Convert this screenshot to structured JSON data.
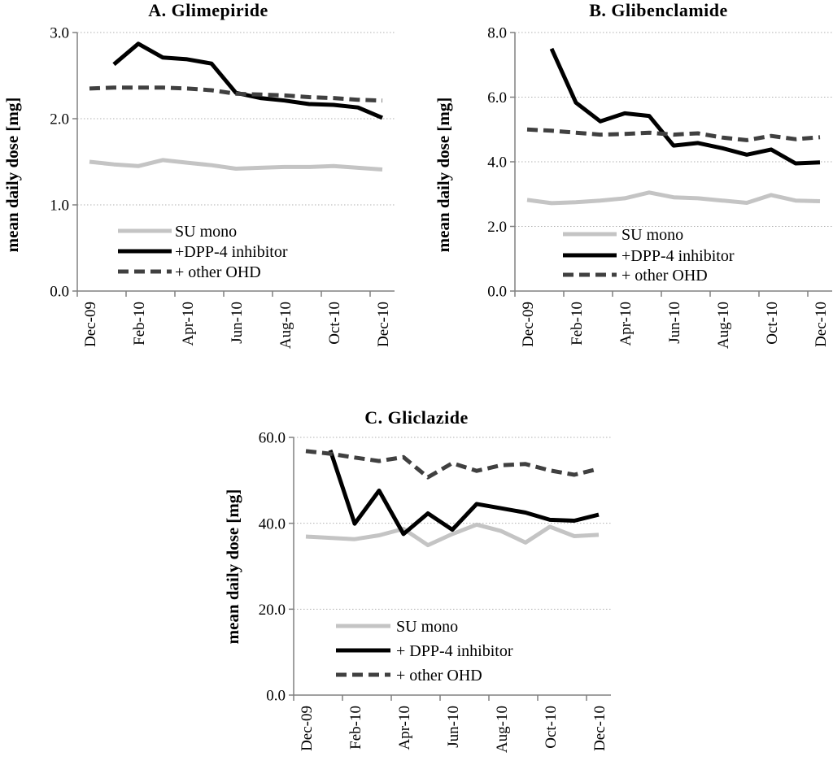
{
  "figure": {
    "panel_a_title": "A. Glimepiride",
    "panel_b_title": "B. Glibenclamide",
    "panel_c_title": "C. Gliclazide",
    "y_axis_label": "mean daily dose [mg]"
  },
  "colors": {
    "su_mono": "#c4c4c4",
    "dpp4": "#000000",
    "other_ohd": "#404040",
    "axis": "#808080",
    "gridline": "#b0b0b0"
  },
  "chart_data": [
    {
      "panel": "A",
      "type": "line",
      "title": "A. Glimepiride",
      "ylabel": "mean daily dose [mg]",
      "ylim": [
        0,
        3
      ],
      "grid": true,
      "legend_position": "inside-bottom-left",
      "yticks": [
        {
          "v": 3,
          "label": "3.0"
        },
        {
          "v": 2,
          "label": "2.0"
        },
        {
          "v": 1,
          "label": "1.0"
        },
        {
          "v": 0,
          "label": "0.0"
        }
      ],
      "categories": [
        "Dec-09",
        "Jan-10",
        "Feb-10",
        "Mar-10",
        "Apr-10",
        "May-10",
        "Jun-10",
        "Jul-10",
        "Aug-10",
        "Sep-10",
        "Oct-10",
        "Nov-10",
        "Dec-10"
      ],
      "x_tick_labels": [
        "Dec-09",
        "Feb-10",
        "Apr-10",
        "Jun-10",
        "Aug-10",
        "Oct-10",
        "Dec-10"
      ],
      "series": [
        {
          "name": "SU mono",
          "color": "#c4c4c4",
          "style": "solid",
          "values": [
            1.5,
            1.47,
            1.45,
            1.52,
            1.49,
            1.46,
            1.42,
            1.43,
            1.44,
            1.44,
            1.45,
            1.43,
            1.41
          ]
        },
        {
          "name": "+DPP-4 inhibitor",
          "color": "#000000",
          "style": "solid",
          "values": [
            null,
            2.63,
            2.87,
            2.71,
            2.69,
            2.64,
            2.3,
            2.24,
            2.21,
            2.17,
            2.16,
            2.13,
            2.01
          ]
        },
        {
          "name": "+ other OHD",
          "color": "#404040",
          "style": "dashed",
          "values": [
            2.35,
            2.36,
            2.36,
            2.36,
            2.35,
            2.33,
            2.29,
            2.28,
            2.27,
            2.25,
            2.24,
            2.22,
            2.21
          ]
        }
      ]
    },
    {
      "panel": "B",
      "type": "line",
      "title": "B. Glibenclamide",
      "ylabel": "mean daily dose [mg]",
      "ylim": [
        0,
        8
      ],
      "grid": true,
      "legend_position": "inside-bottom-left",
      "yticks": [
        {
          "v": 8,
          "label": "8.0"
        },
        {
          "v": 6,
          "label": "6.0"
        },
        {
          "v": 4,
          "label": "4.0"
        },
        {
          "v": 2,
          "label": "2.0"
        },
        {
          "v": 0,
          "label": "0.0"
        }
      ],
      "categories": [
        "Dec-09",
        "Jan-10",
        "Feb-10",
        "Mar-10",
        "Apr-10",
        "May-10",
        "Jun-10",
        "Jul-10",
        "Aug-10",
        "Sep-10",
        "Oct-10",
        "Nov-10",
        "Dec-10"
      ],
      "x_tick_labels": [
        "Dec-09",
        "Feb-10",
        "Apr-10",
        "Jun-10",
        "Aug-10",
        "Oct-10",
        "Dec-10"
      ],
      "series": [
        {
          "name": "SU mono",
          "color": "#c4c4c4",
          "style": "solid",
          "values": [
            2.82,
            2.72,
            2.75,
            2.8,
            2.87,
            3.05,
            2.9,
            2.87,
            2.8,
            2.73,
            2.97,
            2.8,
            2.78
          ]
        },
        {
          "name": "+DPP-4 inhibitor",
          "color": "#000000",
          "style": "solid",
          "values": [
            null,
            7.5,
            5.83,
            5.25,
            5.5,
            5.42,
            4.5,
            4.58,
            4.42,
            4.22,
            4.38,
            3.95,
            3.98
          ]
        },
        {
          "name": "+ other OHD",
          "color": "#404040",
          "style": "dashed",
          "values": [
            5.0,
            4.96,
            4.9,
            4.84,
            4.86,
            4.9,
            4.84,
            4.88,
            4.75,
            4.67,
            4.8,
            4.7,
            4.76
          ]
        }
      ]
    },
    {
      "panel": "C",
      "type": "line",
      "title": "C. Gliclazide",
      "ylabel": "mean daily dose [mg]",
      "ylim": [
        0,
        60
      ],
      "grid": true,
      "legend_position": "inside-bottom-left",
      "yticks": [
        {
          "v": 60,
          "label": "60.0"
        },
        {
          "v": 40,
          "label": "40.0"
        },
        {
          "v": 20,
          "label": "20.0"
        },
        {
          "v": 0,
          "label": "0.0"
        }
      ],
      "categories": [
        "Dec-09",
        "Jan-10",
        "Feb-10",
        "Mar-10",
        "Apr-10",
        "May-10",
        "Jun-10",
        "Jul-10",
        "Aug-10",
        "Sep-10",
        "Oct-10",
        "Nov-10",
        "Dec-10"
      ],
      "x_tick_labels": [
        "Dec-09",
        "Feb-10",
        "Apr-10",
        "Jun-10",
        "Aug-10",
        "Oct-10",
        "Dec-10"
      ],
      "series": [
        {
          "name": "SU mono",
          "color": "#c4c4c4",
          "style": "solid",
          "values": [
            36.9,
            36.6,
            36.3,
            37.2,
            38.7,
            34.9,
            37.5,
            39.7,
            38.2,
            35.5,
            39.2,
            37.0,
            37.3
          ]
        },
        {
          "name": "+ DPP-4 inhibitor",
          "color": "#000000",
          "style": "solid",
          "values": [
            null,
            57.0,
            39.9,
            47.6,
            37.5,
            42.3,
            38.5,
            44.5,
            43.5,
            42.5,
            40.8,
            40.6,
            42.0
          ]
        },
        {
          "name": "+ other OHD",
          "color": "#404040",
          "style": "dashed",
          "values": [
            56.8,
            56.2,
            55.3,
            54.5,
            55.4,
            50.7,
            54.0,
            52.2,
            53.5,
            53.8,
            52.3,
            51.3,
            52.7
          ]
        }
      ]
    }
  ]
}
